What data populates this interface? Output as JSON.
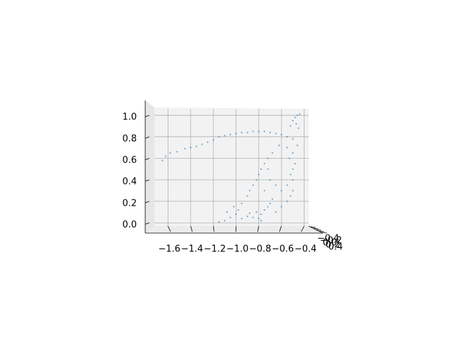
{
  "chart_data": {
    "type": "scatter3d",
    "color": "#1f77b4",
    "grid": true,
    "xlim": [
      -1.72,
      -0.36
    ],
    "zlim": [
      -0.03,
      1.06
    ],
    "xticks": [
      {
        "value": -1.6,
        "label": "−1.6"
      },
      {
        "value": -1.4,
        "label": "−1.4"
      },
      {
        "value": -1.2,
        "label": "−1.2"
      },
      {
        "value": -1.0,
        "label": "−1.0"
      },
      {
        "value": -0.8,
        "label": "−0.8"
      },
      {
        "value": -0.6,
        "label": "−0.6"
      },
      {
        "value": -0.4,
        "label": "−0.4"
      }
    ],
    "zticks": [
      {
        "value": 0.0,
        "label": "0.0"
      },
      0.2,
      0.4,
      0.6,
      0.8,
      {
        "value": 1.0,
        "label": "1.0"
      }
    ],
    "yticks": [
      {
        "value": -0.4,
        "label": "−0.4"
      },
      {
        "value": -0.2,
        "label": "−0.2"
      },
      {
        "value": 0.0,
        "label": "0.0"
      },
      0.2,
      0.4
    ],
    "x": [
      -1.65,
      -1.62,
      -1.58,
      -1.52,
      -1.45,
      -1.4,
      -1.35,
      -1.3,
      -1.25,
      -1.2,
      -1.15,
      -1.1,
      -1.05,
      -1.0,
      -0.95,
      -0.9,
      -0.85,
      -0.8,
      -0.75,
      -0.7,
      -0.65,
      -0.6,
      -0.55,
      -0.5,
      -0.46,
      -0.48,
      -0.46,
      -0.44,
      -0.5,
      -0.47,
      -0.45,
      -0.52,
      -0.55,
      -0.5,
      -0.53,
      -0.48,
      -0.5,
      -0.52,
      -0.5,
      -0.55,
      -0.5,
      -0.52,
      -0.55,
      -0.62,
      -0.68,
      -0.72,
      -0.75,
      -0.78,
      -0.8,
      -0.82,
      -0.85,
      -0.88,
      -0.9,
      -0.7,
      -0.65,
      -0.6,
      -0.75,
      -0.68,
      -0.6,
      -0.72,
      -1.15,
      -1.1,
      -1.05,
      -1.0,
      -0.98,
      -1.02,
      -0.95,
      -0.9,
      -0.85,
      -0.8,
      -0.78,
      -0.75,
      -0.72,
      -0.7,
      -0.82,
      -0.88,
      -1.08,
      -0.95,
      -0.78,
      -0.65
    ],
    "z": [
      0.58,
      0.62,
      0.65,
      0.66,
      0.69,
      0.7,
      0.71,
      0.73,
      0.75,
      0.77,
      0.8,
      0.81,
      0.82,
      0.83,
      0.84,
      0.84,
      0.85,
      0.85,
      0.85,
      0.84,
      0.83,
      0.82,
      0.8,
      0.78,
      0.72,
      0.98,
      1.0,
      1.01,
      0.95,
      0.92,
      0.88,
      0.9,
      0.7,
      0.65,
      0.6,
      0.55,
      0.5,
      0.45,
      0.4,
      0.35,
      0.3,
      0.25,
      0.2,
      0.72,
      0.65,
      0.6,
      0.55,
      0.5,
      0.45,
      0.4,
      0.35,
      0.3,
      0.25,
      0.4,
      0.35,
      0.3,
      0.3,
      0.22,
      0.15,
      0.5,
      0.01,
      0.02,
      0.05,
      0.08,
      0.12,
      0.15,
      0.04,
      0.06,
      0.05,
      0.04,
      0.08,
      0.12,
      0.15,
      0.18,
      0.1,
      0.09,
      0.1,
      0.18,
      0.02,
      0.1
    ]
  }
}
